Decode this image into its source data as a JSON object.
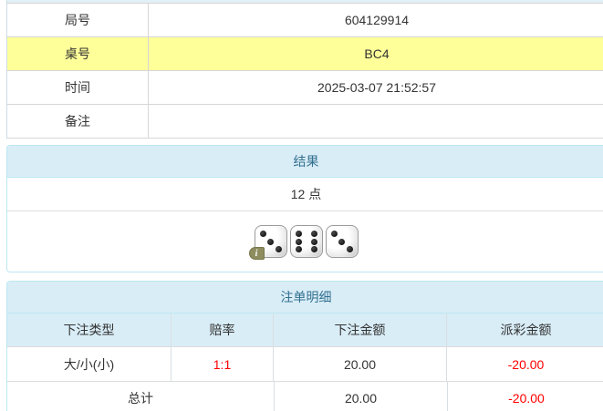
{
  "info_table": {
    "rows": [
      {
        "label": "局号",
        "value": "604129914"
      },
      {
        "label": "桌号",
        "value": "BC4"
      },
      {
        "label": "时间",
        "value": "2025-03-07 21:52:57"
      },
      {
        "label": "备注",
        "value": ""
      }
    ]
  },
  "result_panel": {
    "title": "结果",
    "points": "12 点",
    "dice": [
      3,
      6,
      3
    ],
    "info_icon_glyph": "i"
  },
  "bets_panel": {
    "title": "注单明细",
    "columns": [
      "下注类型",
      "赔率",
      "下注金额",
      "派彩金额"
    ],
    "rows": [
      {
        "bet_type": "大/小(小)",
        "odds": "1:1",
        "bet_amount": "20.00",
        "payout_amount": "-20.00"
      }
    ],
    "total": {
      "label": "总计",
      "bet_amount": "20.00",
      "payout_amount": "-20.00"
    }
  },
  "colors": {
    "highlight_yellow": "#ffff99",
    "panel_header_bg": "#d9edf7",
    "panel_header_text": "#31708f",
    "panel_border": "#bce8f1",
    "row_border": "#dddddd",
    "negative_red": "#ff0000",
    "text": "#333333",
    "info_badge_olive": "#8d8d60"
  }
}
